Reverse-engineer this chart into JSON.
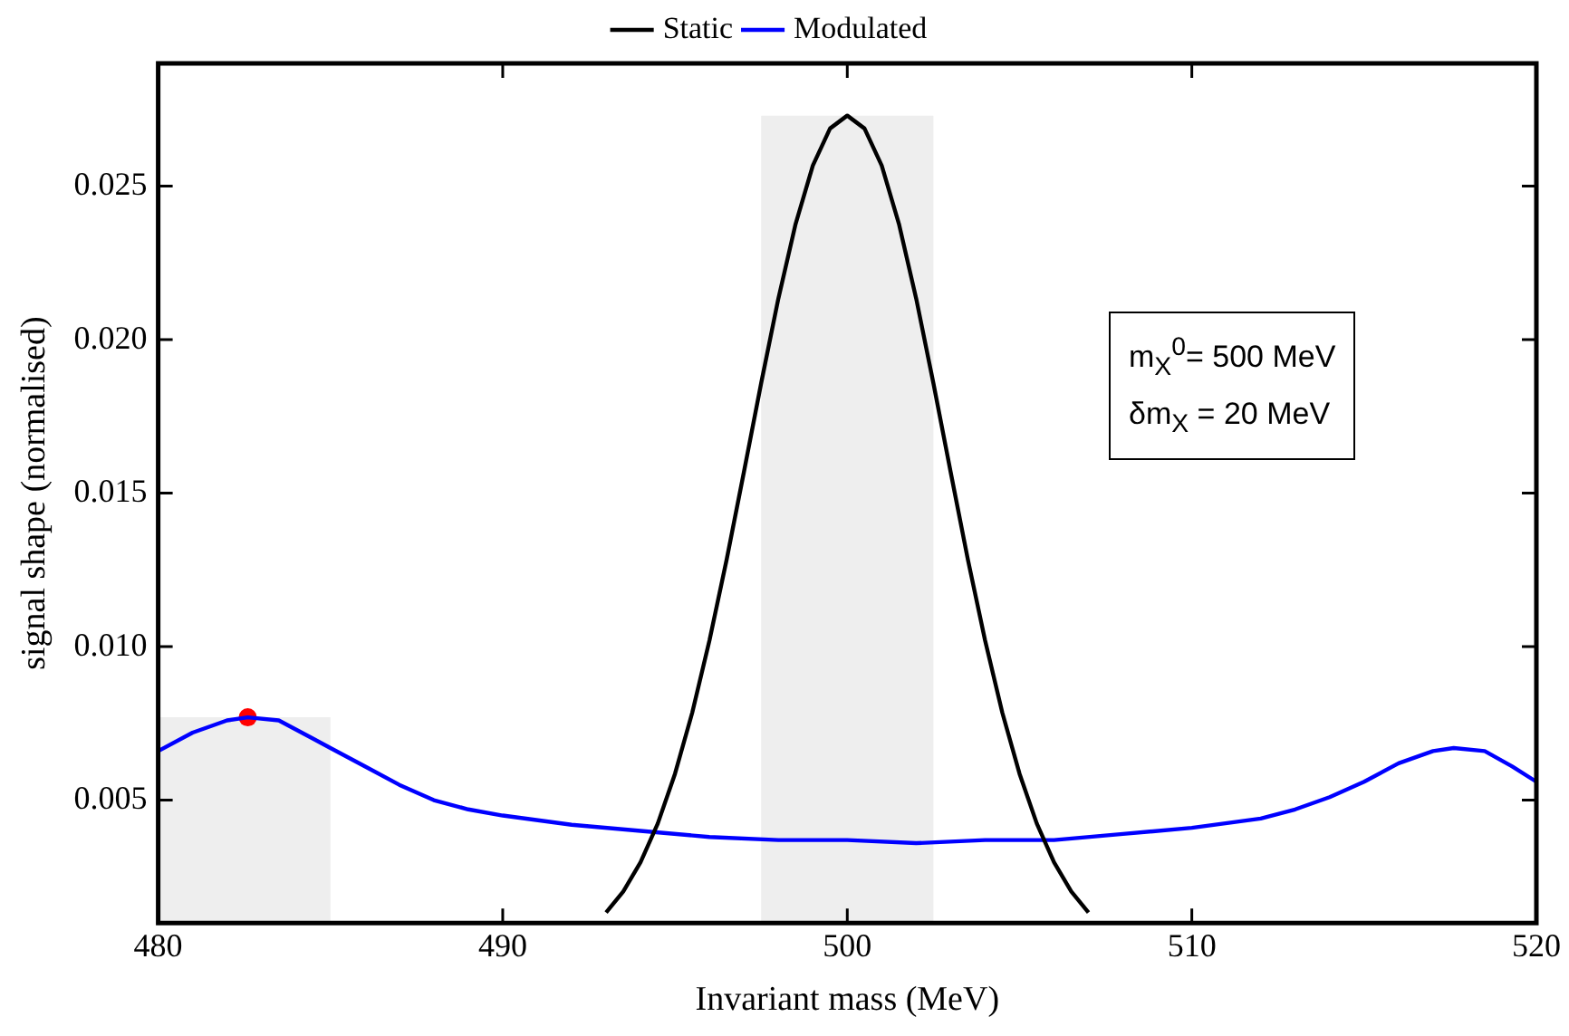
{
  "chart_data": {
    "type": "line",
    "xlabel": "Invariant mass (MeV)",
    "ylabel": "signal shape (normalised)",
    "xlim": [
      480,
      520
    ],
    "xticks": [
      480,
      490,
      500,
      510,
      520
    ],
    "ylim": [
      0.001,
      0.029
    ],
    "yticks": [
      0.005,
      {
        "value": 0.01,
        "label": "0.010"
      },
      0.015,
      {
        "value": 0.02,
        "label": "0.020"
      },
      0.025
    ],
    "grid": false,
    "legend": "top",
    "line_style": "solid",
    "series": [
      {
        "name": "Static",
        "color": "#000000",
        "marker": "none",
        "x": [
          493,
          493.5,
          494,
          494.5,
          495,
          495.5,
          496,
          496.5,
          497,
          497.5,
          498,
          498.5,
          499,
          499.5,
          500,
          500.5,
          501,
          501.5,
          502,
          502.5,
          503,
          503.5,
          504,
          504.5,
          505,
          505.5,
          506,
          506.5,
          507
        ],
        "values": [
          0.00134,
          0.00203,
          0.00298,
          0.00424,
          0.00586,
          0.00785,
          0.0102,
          0.01284,
          0.01569,
          0.01858,
          0.02134,
          0.02377,
          0.02567,
          0.02688,
          0.0273,
          0.02688,
          0.02567,
          0.02377,
          0.02134,
          0.01858,
          0.01569,
          0.01284,
          0.0102,
          0.00785,
          0.00586,
          0.00424,
          0.00298,
          0.00203,
          0.00134
        ]
      },
      {
        "name": "Modulated",
        "color": "#0000ff",
        "marker": "none",
        "x": [
          480,
          481,
          482,
          482.6,
          483.5,
          484.5,
          485,
          486,
          487,
          488,
          489,
          490,
          492,
          494,
          496,
          498,
          500,
          502,
          504,
          506,
          508,
          510,
          512,
          513,
          514,
          515,
          516,
          517,
          517.6,
          518.5,
          519.3,
          520
        ],
        "values": [
          0.0066,
          0.0072,
          0.0076,
          0.0077,
          0.0076,
          0.007,
          0.0067,
          0.0061,
          0.0055,
          0.005,
          0.0047,
          0.0045,
          0.0042,
          0.004,
          0.0038,
          0.0037,
          0.0037,
          0.0036,
          0.0037,
          0.0037,
          0.0039,
          0.0041,
          0.0044,
          0.0047,
          0.0051,
          0.0056,
          0.0062,
          0.0066,
          0.0067,
          0.0066,
          0.0061,
          0.0056
        ]
      },
      {
        "type": "scatter",
        "color": "#ff0000",
        "marker": "circle",
        "x": [
          482.6
        ],
        "values": [
          0.0077
        ]
      }
    ],
    "bands": [
      {
        "axis": "x",
        "from": 480,
        "to": 485,
        "color": "#eeeeee"
      },
      {
        "axis": "x",
        "from": 497.5,
        "to": 502.5,
        "color": "#eeeeee"
      }
    ],
    "annotations": [
      "m$_{X}$$^{0}$= 500 MeV",
      "δm$_{X}$ = 20 MeV"
    ]
  }
}
